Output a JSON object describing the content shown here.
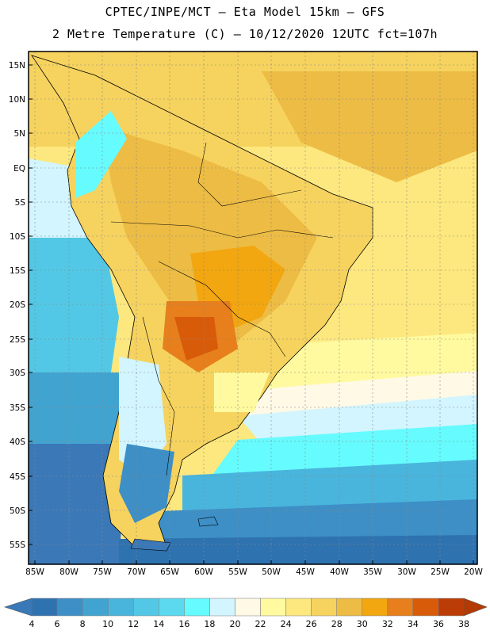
{
  "header": {
    "line1": "CPTEC/INPE/MCT  –  Eta Model 15km  – GFS",
    "line2": "2 Metre Temperature (C) – 10/12/2020 12UTC fct=107h"
  },
  "map": {
    "lat_labels": [
      "15N",
      "10N",
      "5N",
      "EQ",
      "5S",
      "10S",
      "15S",
      "20S",
      "25S",
      "30S",
      "35S",
      "40S",
      "45S",
      "50S",
      "55S"
    ],
    "lon_labels": [
      "85W",
      "80W",
      "75W",
      "70W",
      "65W",
      "60W",
      "55W",
      "50W",
      "45W",
      "40W",
      "35W",
      "30W",
      "25W",
      "20W"
    ]
  },
  "colorbar": {
    "labels": [
      "4",
      "6",
      "8",
      "10",
      "12",
      "14",
      "16",
      "18",
      "20",
      "22",
      "24",
      "26",
      "28",
      "30",
      "32",
      "34",
      "36",
      "38"
    ],
    "colors": [
      "#3b78b8",
      "#2e72b0",
      "#3d8fc6",
      "#41a4d0",
      "#49b5dc",
      "#52c8e6",
      "#5cd9ee",
      "#66fbff",
      "#d2f5ff",
      "#fff9e6",
      "#fffa9f",
      "#fde87f",
      "#f6d35e",
      "#edbc44",
      "#f2a610",
      "#e67f1c",
      "#d85b0a",
      "#bc3c08",
      "#b43a04"
    ]
  }
}
